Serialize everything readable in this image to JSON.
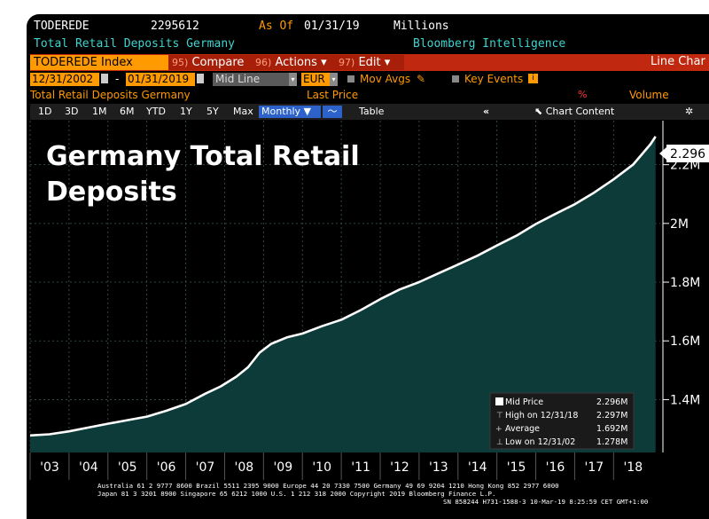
{
  "header": {
    "ticker": "TODEREDE",
    "code": "2295612",
    "as_of_label": "As Of",
    "as_of_date": "01/31/19",
    "units": "Millions",
    "name": "Total Retail Deposits Germany",
    "source": "Bloomberg Intelligence"
  },
  "toolbar": {
    "security": "TODEREDE Index",
    "compare_num": "95)",
    "compare_label": "Compare",
    "actions_num": "96)",
    "actions_label": "Actions",
    "edit_num": "97)",
    "edit_label": "Edit",
    "right_label": "Line Char"
  },
  "range": {
    "start": "12/31/2002",
    "dash": "-",
    "end": "01/31/2019",
    "mode": "Mid Line",
    "currency": "EUR",
    "mov_avgs": "Mov Avgs",
    "key_events": "Key Events"
  },
  "legend_row": {
    "series": "Total Retail Deposits Germany",
    "field": "Last Price",
    "volume": "Volume"
  },
  "periods": {
    "p1d": "1D",
    "p3d": "3D",
    "p1m": "1M",
    "p6m": "6M",
    "pytd": "YTD",
    "p1y": "1Y",
    "p5y": "5Y",
    "pmax": "Max",
    "frequency": "Monthly",
    "table": "Table",
    "chart_content": "Chart Content"
  },
  "overlay_title": [
    "Germany Total Retail",
    "Deposits"
  ],
  "stats": [
    {
      "label": "Mid Price",
      "value": "2.296M"
    },
    {
      "label": "High on 12/31/18",
      "value": "2.297M"
    },
    {
      "label": "Average",
      "value": "1.692M"
    },
    {
      "label": "Low on 12/31/02",
      "value": "1.278M"
    }
  ],
  "last_value_label": "2.296",
  "footer": [
    "Australia 61 2 9777 8600 Brazil 5511 2395 9000 Europe 44 20 7330 7500 Germany 49 69 9204 1210 Hong Kong 852 2977 6000",
    "Japan 81 3 3201 8900        Singapore 65 6212 1000       U.S. 1 212 318 2000         Copyright 2019 Bloomberg Finance L.P.",
    "SN 858244 H731-1588-3 10-Mar-19  8:25:59 CET  GMT+1:00"
  ],
  "colors": {
    "background": "#000000",
    "area_fill": "#0d3b3a",
    "line": "#ffffff",
    "accent_orange": "#ff9a00",
    "bar_red": "#c0290f",
    "teal_text": "#3fd4d0"
  },
  "chart_data": {
    "type": "area",
    "title": "Germany Total Retail Deposits",
    "xlabel": "",
    "ylabel": "",
    "x_ticks": [
      "'03",
      "'04",
      "'05",
      "'06",
      "'07",
      "'08",
      "'09",
      "'10",
      "'11",
      "'12",
      "'13",
      "'14",
      "'15",
      "'16",
      "'17",
      "'18"
    ],
    "y_ticks": [
      "1.4M",
      "1.6M",
      "1.8M",
      "2M",
      "2.2M"
    ],
    "ylim": [
      1.22,
      2.35
    ],
    "xlim": [
      2003.0,
      2019.2
    ],
    "grid": true,
    "series": [
      {
        "name": "Total Retail Deposits Germany",
        "x": [
          2003.0,
          2003.5,
          2004.0,
          2004.5,
          2005.0,
          2005.5,
          2006.0,
          2006.5,
          2007.0,
          2007.5,
          2007.9,
          2008.3,
          2008.6,
          2008.9,
          2009.2,
          2009.6,
          2010.0,
          2010.5,
          2011.0,
          2011.5,
          2012.0,
          2012.5,
          2013.0,
          2013.5,
          2014.0,
          2014.5,
          2015.0,
          2015.5,
          2016.0,
          2016.5,
          2017.0,
          2017.5,
          2018.0,
          2018.5,
          2018.95,
          2019.08
        ],
        "values": [
          1.278,
          1.282,
          1.292,
          1.305,
          1.318,
          1.33,
          1.342,
          1.362,
          1.385,
          1.42,
          1.445,
          1.478,
          1.51,
          1.56,
          1.59,
          1.612,
          1.625,
          1.65,
          1.672,
          1.705,
          1.742,
          1.775,
          1.8,
          1.83,
          1.86,
          1.89,
          1.925,
          1.958,
          1.998,
          2.032,
          2.065,
          2.105,
          2.15,
          2.2,
          2.27,
          2.296
        ]
      }
    ]
  }
}
